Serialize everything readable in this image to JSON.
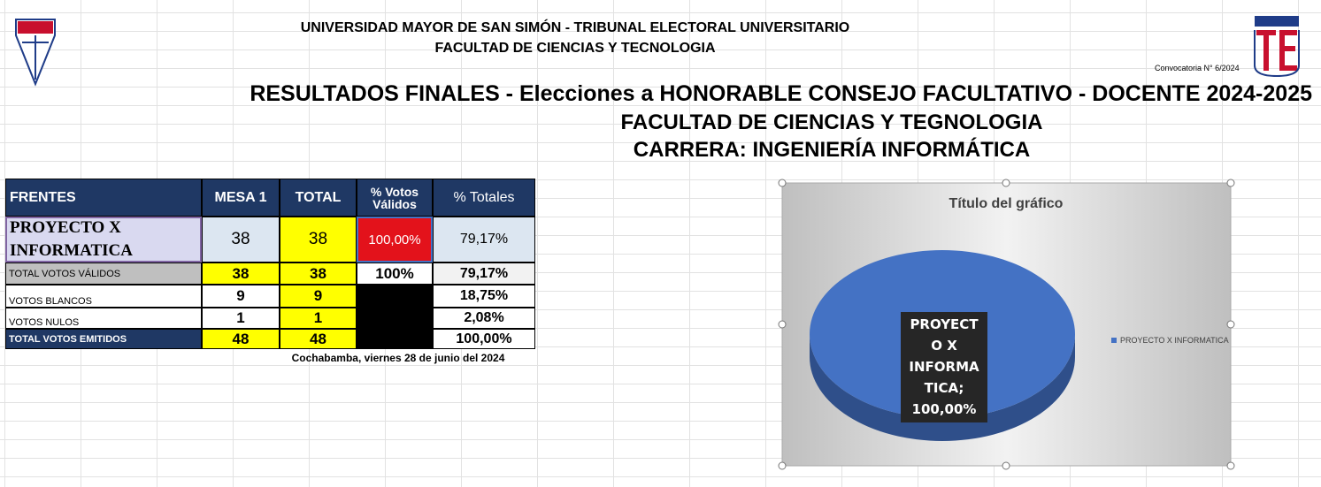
{
  "header": {
    "university": "UNIVERSIDAD MAYOR DE SAN SIMÓN - TRIBUNAL ELECTORAL UNIVERSITARIO",
    "faculty": "FACULTAD DE CIENCIAS Y TECNOLOGIA",
    "convocatoria": "Convocatoria N° 6/2024",
    "title": "RESULTADOS FINALES - Elecciones a HONORABLE CONSEJO FACULTATIVO - DOCENTE 2024-2025",
    "faculty_2": "FACULTAD DE CIENCIAS Y TEGNOLOGIA",
    "career": "CARRERA: INGENIERÍA INFORMÁTICA"
  },
  "table": {
    "columns": [
      "FRENTES",
      "MESA 1",
      "TOTAL",
      "% Votos Válidos",
      "% Totales"
    ],
    "rows": [
      [
        "PROYECTO X INFORMATICA",
        "38",
        "38",
        "100,00%",
        "79,17%"
      ],
      [
        "TOTAL VOTOS VÁLIDOS",
        "38",
        "38",
        "100%",
        "79,17%"
      ],
      [
        "VOTOS BLANCOS",
        "9",
        "9",
        null,
        "18,75%"
      ],
      [
        "VOTOS NULOS",
        "1",
        "1",
        null,
        "2,08%"
      ],
      [
        "TOTAL VOTOS EMITIDOS",
        "48",
        "48",
        null,
        "100,00%"
      ]
    ]
  },
  "footer": {
    "date": "Cochabamba, viernes 28 de junio del 2024"
  },
  "chart_data": {
    "type": "pie",
    "title": "Título del gráfico",
    "categories": [
      "PROYECTO X INFORMATICA"
    ],
    "values": [
      100
    ],
    "value_labels": [
      "PROYECTO X INFORMATICA; 100,00%"
    ],
    "colors": [
      "#4472c4"
    ],
    "legend": "right"
  }
}
